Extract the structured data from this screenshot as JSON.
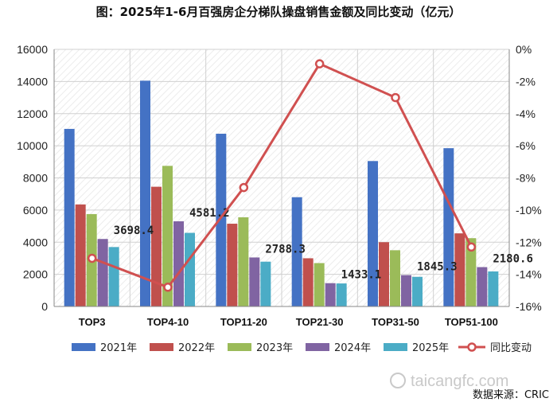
{
  "chart_data": {
    "type": "bar",
    "title": "图：2025年1-6月百强房企分梯队操盘销售金额及同比变动（亿元）",
    "categories": [
      "TOP3",
      "TOP4-10",
      "TOP11-20",
      "TOP21-30",
      "TOP31-50",
      "TOP51-100"
    ],
    "ylim": [
      0,
      16000
    ],
    "yticks": [
      0,
      2000,
      4000,
      6000,
      8000,
      10000,
      12000,
      14000,
      16000
    ],
    "y2lim": [
      -16,
      0
    ],
    "y2ticks": [
      "0%",
      "-2%",
      "-4%",
      "-6%",
      "-8%",
      "-10%",
      "-12%",
      "-14%",
      "-16%"
    ],
    "y2tick_values": [
      0,
      -2,
      -4,
      -6,
      -8,
      -10,
      -12,
      -14,
      -16
    ],
    "grid": true,
    "legend_position": "bottom",
    "series": [
      {
        "name": "2021年",
        "color": "#4472c4",
        "values": [
          11050,
          14050,
          10750,
          6800,
          9050,
          9850
        ]
      },
      {
        "name": "2022年",
        "color": "#c0504d",
        "values": [
          6350,
          7450,
          5150,
          3000,
          4000,
          4550
        ]
      },
      {
        "name": "2023年",
        "color": "#9bbb59",
        "values": [
          5750,
          8750,
          5550,
          2700,
          3500,
          4250
        ]
      },
      {
        "name": "2024年",
        "color": "#8064a2",
        "values": [
          4200,
          5300,
          3050,
          1450,
          1950,
          2450
        ]
      },
      {
        "name": "2025年",
        "color": "#4bacc6",
        "values": [
          3698.4,
          4581.2,
          2788.3,
          1433.1,
          1845.3,
          2180.6
        ]
      }
    ],
    "data_labels": [
      "3698.4",
      "4581.2",
      "2788.3",
      "1433.1",
      "1845.3",
      "2180.6"
    ],
    "line_series": {
      "name": "同比变动",
      "color": "#d05050",
      "axis": "right",
      "values": [
        -13.0,
        -14.8,
        -8.6,
        -0.9,
        -3.0,
        -12.3
      ]
    }
  },
  "source": "数据来源：CRIC",
  "watermark": "taicangfc.com"
}
